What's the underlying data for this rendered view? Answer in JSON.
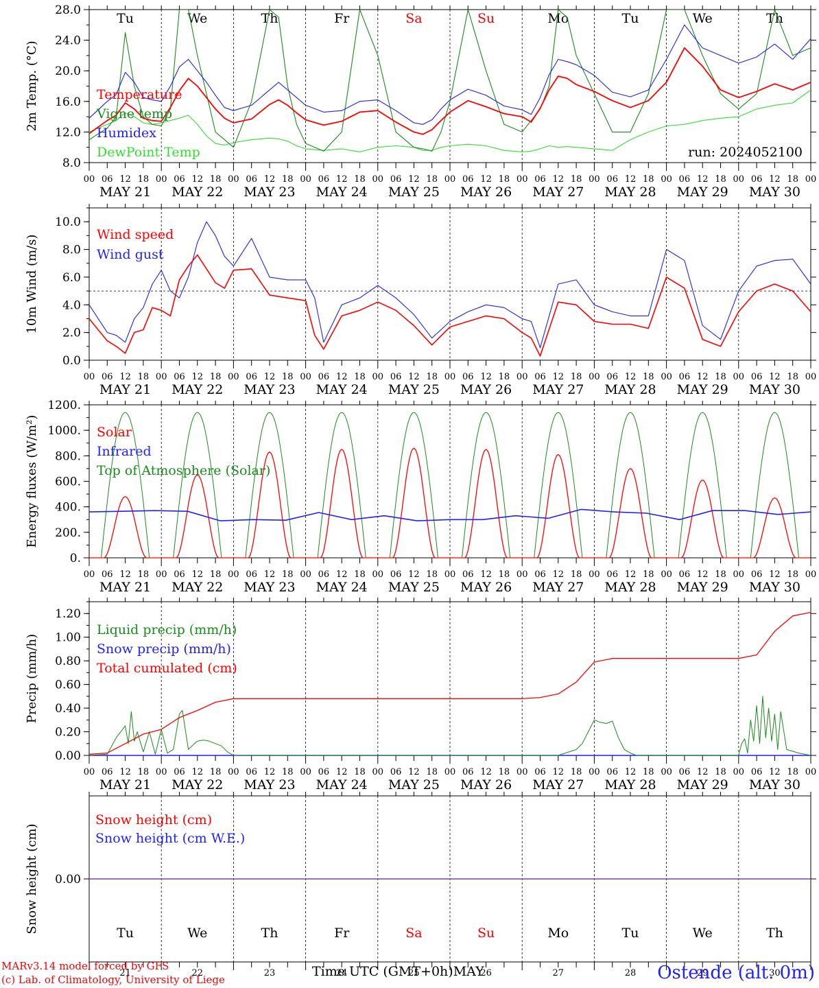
{
  "credits": {
    "model": "MARv3.14 model forced by GFS",
    "lab": "(c) Lab. of Climatology, University of Liege",
    "color": "#ff0000"
  },
  "station": {
    "label": "Ostende (alt. 0m)",
    "color": "#1f1fff"
  },
  "axis": {
    "time_label": "Time UTC (GMT+0h)",
    "month": "MAY",
    "hour_ticks": [
      "00",
      "06",
      "12",
      "18"
    ],
    "dates": [
      "MAY 21",
      "MAY 22",
      "MAY 23",
      "MAY 24",
      "MAY 25",
      "MAY 26",
      "MAY 27",
      "MAY 28",
      "MAY 29",
      "MAY 30"
    ],
    "days": [
      "Tu",
      "We",
      "Th",
      "Fr",
      "Sa",
      "Su",
      "Mo",
      "Tu",
      "We",
      "Th"
    ],
    "weekend_days": [
      4,
      5
    ],
    "day_numbers": [
      "21",
      "22",
      "23",
      "24",
      "25",
      "26",
      "27",
      "28",
      "29",
      "30"
    ]
  },
  "colors": {
    "red": "#ff0000",
    "green": "#1a8a1a",
    "blue": "#1f1fff",
    "light_green": "#33dd33",
    "purple": "#7f3f9f"
  },
  "chart_data": [
    {
      "type": "line",
      "ylabel": "2m Temp. (°C)",
      "ylim": [
        8,
        28
      ],
      "yticks": [
        "8.0",
        "12.0",
        "16.0",
        "20.0",
        "24.0",
        "28.0"
      ],
      "ytick_values": [
        8,
        12,
        16,
        20,
        24,
        28
      ],
      "run_label": "run: 2024052100",
      "x_hours": [
        0,
        6,
        9,
        12,
        15,
        18,
        21,
        24,
        27,
        30,
        33,
        36,
        39,
        42,
        45,
        48,
        54,
        60,
        63,
        66,
        69,
        72,
        78,
        84,
        90,
        96,
        102,
        108,
        111,
        114,
        117,
        120,
        126,
        132,
        138,
        144,
        147,
        150,
        153,
        156,
        159,
        162,
        168,
        174,
        180,
        186,
        192,
        198,
        204,
        210,
        216,
        222,
        228,
        234,
        240
      ],
      "series": [
        {
          "name": "Temperature",
          "color": "#ff0000",
          "values": [
            11.8,
            13.5,
            14.2,
            15.8,
            15.0,
            13.8,
            13.5,
            13.4,
            15.2,
            17.4,
            19.0,
            18.0,
            16.5,
            15.0,
            13.8,
            13.2,
            13.7,
            15.6,
            16.2,
            15.5,
            14.5,
            13.6,
            12.9,
            13.4,
            14.6,
            14.8,
            13.3,
            12.0,
            11.7,
            12.3,
            13.5,
            14.6,
            16.1,
            15.3,
            14.4,
            14.0,
            13.3,
            15.1,
            17.5,
            19.3,
            19.0,
            18.2,
            17.3,
            16.1,
            15.2,
            16.1,
            18.5,
            23.0,
            20.6,
            17.5,
            16.5,
            17.3,
            18.3,
            17.5,
            18.5
          ]
        },
        {
          "name": "Vigne temp",
          "color": "#1a8a1a",
          "values": [
            11.0,
            12.5,
            14.0,
            25.0,
            18.0,
            14.0,
            13.0,
            12.8,
            15.0,
            28.0,
            28.0,
            22.0,
            17.0,
            12.0,
            11.0,
            10.0,
            16.0,
            28.0,
            27.0,
            18.0,
            13.0,
            10.5,
            9.5,
            12.0,
            28.0,
            22.0,
            12.0,
            10.0,
            9.8,
            9.5,
            12.0,
            16.0,
            28.0,
            20.0,
            13.0,
            12.0,
            13.5,
            15.0,
            18.0,
            28.0,
            27.0,
            22.0,
            17.0,
            12.0,
            12.0,
            17.0,
            28.0,
            28.0,
            22.0,
            17.0,
            15.0,
            17.0,
            28.0,
            22.0,
            23.0
          ]
        },
        {
          "name": "Humidex",
          "color": "#1f1fff",
          "values": [
            13.8,
            16.0,
            16.9,
            19.8,
            18.5,
            16.5,
            16.2,
            16.0,
            18.0,
            20.5,
            21.5,
            20.0,
            18.5,
            16.8,
            15.2,
            14.8,
            15.5,
            17.5,
            18.5,
            17.5,
            16.5,
            15.5,
            14.6,
            14.8,
            16.0,
            16.2,
            14.8,
            13.2,
            13.0,
            13.6,
            15.0,
            16.2,
            17.6,
            16.8,
            15.4,
            14.9,
            14.3,
            16.5,
            19.5,
            21.5,
            21.2,
            20.8,
            19.4,
            17.2,
            16.6,
            17.5,
            21.5,
            26.0,
            23.0,
            22.0,
            21.0,
            21.8,
            23.5,
            21.5,
            24.2
          ]
        },
        {
          "name": "DewPoint Temp",
          "color": "#33dd33",
          "values": [
            12.0,
            13.0,
            13.5,
            14.5,
            14.0,
            13.2,
            13.0,
            13.2,
            13.5,
            13.8,
            14.2,
            13.0,
            11.5,
            10.5,
            10.3,
            10.6,
            11.0,
            11.2,
            11.1,
            10.8,
            10.2,
            9.8,
            9.6,
            9.8,
            9.4,
            10.0,
            10.2,
            10.0,
            9.6,
            9.6,
            10.0,
            10.2,
            10.4,
            10.2,
            9.6,
            9.4,
            9.5,
            9.8,
            10.2,
            10.0,
            10.1,
            10.0,
            9.8,
            9.6,
            11.0,
            12.0,
            12.8,
            13.0,
            13.5,
            13.8,
            14.0,
            15.0,
            15.5,
            15.8,
            17.5
          ]
        }
      ],
      "legend_labels": [
        "Temperature",
        "Vigne temp",
        "Humidex",
        "DewPoint Temp"
      ]
    },
    {
      "type": "line",
      "ylabel": "10m Wind (m/s)",
      "ylim": [
        0,
        11
      ],
      "yticks": [
        "0.0",
        "2.0",
        "4.0",
        "6.0",
        "8.0",
        "10.0"
      ],
      "ytick_values": [
        0,
        2,
        4,
        6,
        8,
        10
      ],
      "reference_line": 5,
      "x_hours": [
        0,
        6,
        9,
        12,
        15,
        18,
        21,
        24,
        27,
        30,
        33,
        36,
        39,
        42,
        45,
        48,
        54,
        60,
        66,
        72,
        75,
        78,
        84,
        90,
        96,
        102,
        108,
        114,
        120,
        126,
        132,
        138,
        144,
        147,
        150,
        156,
        162,
        168,
        174,
        180,
        186,
        192,
        198,
        204,
        210,
        216,
        222,
        228,
        234,
        240
      ],
      "series": [
        {
          "name": "Wind speed",
          "color": "#ff0000",
          "values": [
            3.0,
            1.4,
            1.0,
            0.5,
            2.0,
            2.2,
            3.8,
            3.6,
            3.2,
            5.8,
            6.8,
            7.6,
            6.6,
            5.6,
            5.2,
            6.5,
            6.6,
            4.7,
            4.5,
            4.3,
            1.8,
            0.8,
            3.2,
            3.6,
            4.2,
            3.6,
            2.5,
            1.1,
            2.4,
            2.8,
            3.2,
            3.0,
            2.0,
            1.6,
            0.3,
            4.2,
            4.0,
            2.8,
            2.6,
            2.6,
            2.3,
            6.0,
            5.2,
            1.5,
            1.0,
            3.5,
            5.0,
            5.5,
            5.0,
            3.5
          ]
        },
        {
          "name": "Wind gust",
          "color": "#1f1fff",
          "values": [
            4.0,
            2.0,
            1.8,
            1.3,
            3.0,
            3.8,
            5.5,
            6.5,
            5.0,
            4.5,
            6.0,
            8.5,
            10.0,
            9.0,
            7.5,
            6.8,
            8.8,
            6.0,
            5.8,
            5.8,
            4.5,
            1.3,
            4.0,
            4.5,
            5.4,
            4.5,
            3.3,
            1.6,
            2.8,
            3.5,
            4.0,
            3.8,
            3.0,
            2.8,
            0.9,
            5.5,
            5.8,
            4.0,
            3.5,
            3.2,
            3.2,
            8.0,
            7.2,
            2.5,
            1.5,
            5.0,
            6.8,
            7.2,
            7.3,
            5.5
          ]
        }
      ],
      "legend_labels": [
        "Wind speed",
        "Wind gust"
      ]
    },
    {
      "type": "line",
      "ylabel": "Energy fluxes (W/m²)",
      "ylim": [
        0,
        1200
      ],
      "yticks": [
        "0.",
        "200.",
        "400.",
        "600.",
        "800.",
        "1000.",
        "1200."
      ],
      "ytick_values": [
        0,
        200,
        400,
        600,
        800,
        1000,
        1200
      ],
      "solar_peaks": [
        480,
        650,
        830,
        850,
        860,
        850,
        810,
        700,
        610,
        470
      ],
      "toa_peak": 1140,
      "infrared": [
        360,
        365,
        370,
        365,
        290,
        300,
        295,
        355,
        300,
        330,
        290,
        300,
        300,
        330,
        310,
        380,
        360,
        350,
        300,
        370,
        370,
        340,
        360
      ],
      "series": [
        {
          "name": "Solar",
          "color": "#ff0000"
        },
        {
          "name": "Infrared",
          "color": "#1f1fff"
        },
        {
          "name": "Top of Atmosphere (Solar)",
          "color": "#1a8a1a"
        }
      ],
      "legend_labels": [
        "Solar",
        "Infrared",
        "Top of Atmosphere (Solar)"
      ]
    },
    {
      "type": "line",
      "ylabel": "Precip (mm/h)",
      "ylim": [
        0,
        1.3
      ],
      "yticks": [
        "0.00",
        "0.20",
        "0.40",
        "0.60",
        "0.80",
        "1.00",
        "1.20"
      ],
      "ytick_values": [
        0,
        0.2,
        0.4,
        0.6,
        0.8,
        1.0,
        1.2
      ],
      "cumulated": {
        "x_hours": [
          0,
          6,
          12,
          18,
          24,
          30,
          36,
          42,
          48,
          54,
          66,
          72,
          144,
          150,
          156,
          162,
          168,
          174,
          180,
          192,
          216,
          222,
          228,
          234,
          240
        ],
        "values": [
          0.01,
          0.02,
          0.1,
          0.18,
          0.22,
          0.32,
          0.38,
          0.45,
          0.48,
          0.48,
          0.48,
          0.48,
          0.48,
          0.49,
          0.52,
          0.62,
          0.79,
          0.82,
          0.82,
          0.82,
          0.82,
          0.85,
          1.05,
          1.18,
          1.21
        ]
      },
      "liquid": {
        "x_hours": [
          0,
          6,
          9,
          12,
          13,
          14,
          15,
          16,
          18,
          20,
          22,
          24,
          26,
          28,
          30,
          31,
          33,
          35,
          36,
          38,
          40,
          42,
          44,
          46,
          48,
          50,
          156,
          162,
          164,
          166,
          168,
          170,
          172,
          174,
          176,
          178,
          180,
          182,
          216,
          217,
          218,
          219,
          220,
          221,
          222,
          223,
          224,
          225,
          226,
          227,
          228,
          229,
          230,
          232,
          236,
          240
        ],
        "values": [
          0,
          0.01,
          0.15,
          0.25,
          0.1,
          0.37,
          0.12,
          0.2,
          0.03,
          0.2,
          0.01,
          0.22,
          0.02,
          0.05,
          0.35,
          0.38,
          0.05,
          0.1,
          0.12,
          0.13,
          0.12,
          0.1,
          0.08,
          0.03,
          0.0,
          0.0,
          0.0,
          0.05,
          0.1,
          0.2,
          0.3,
          0.28,
          0.27,
          0.29,
          0.15,
          0.05,
          0.02,
          0.0,
          0.0,
          0.1,
          0.14,
          0.02,
          0.3,
          0.12,
          0.42,
          0.1,
          0.5,
          0.15,
          0.4,
          0.12,
          0.35,
          0.05,
          0.37,
          0.05,
          0.02,
          0.0
        ]
      },
      "series": [
        {
          "name": "Liquid precip (mm/h)",
          "color": "#1a8a1a"
        },
        {
          "name": "Snow precip (mm/h)",
          "color": "#1f1fff"
        },
        {
          "name": "Total cumulated (cm)",
          "color": "#ff0000"
        }
      ],
      "legend_labels": [
        "Liquid precip (mm/h)",
        "Snow precip (mm/h)",
        "Total cumulated (cm)"
      ]
    },
    {
      "type": "line",
      "ylabel": "Snow height (cm)",
      "yticks": [
        "0.00"
      ],
      "ytick_values": [
        0
      ],
      "ylim": [
        -1,
        1
      ],
      "series": [
        {
          "name": "Snow height (cm)",
          "color": "#ff0000",
          "values": [
            0,
            0
          ]
        },
        {
          "name": "Snow height (cm W.E.)",
          "color": "#1f1fff",
          "values": [
            0,
            0
          ]
        }
      ],
      "legend_labels": [
        "Snow height (cm)",
        "Snow height (cm W.E.)"
      ]
    }
  ]
}
